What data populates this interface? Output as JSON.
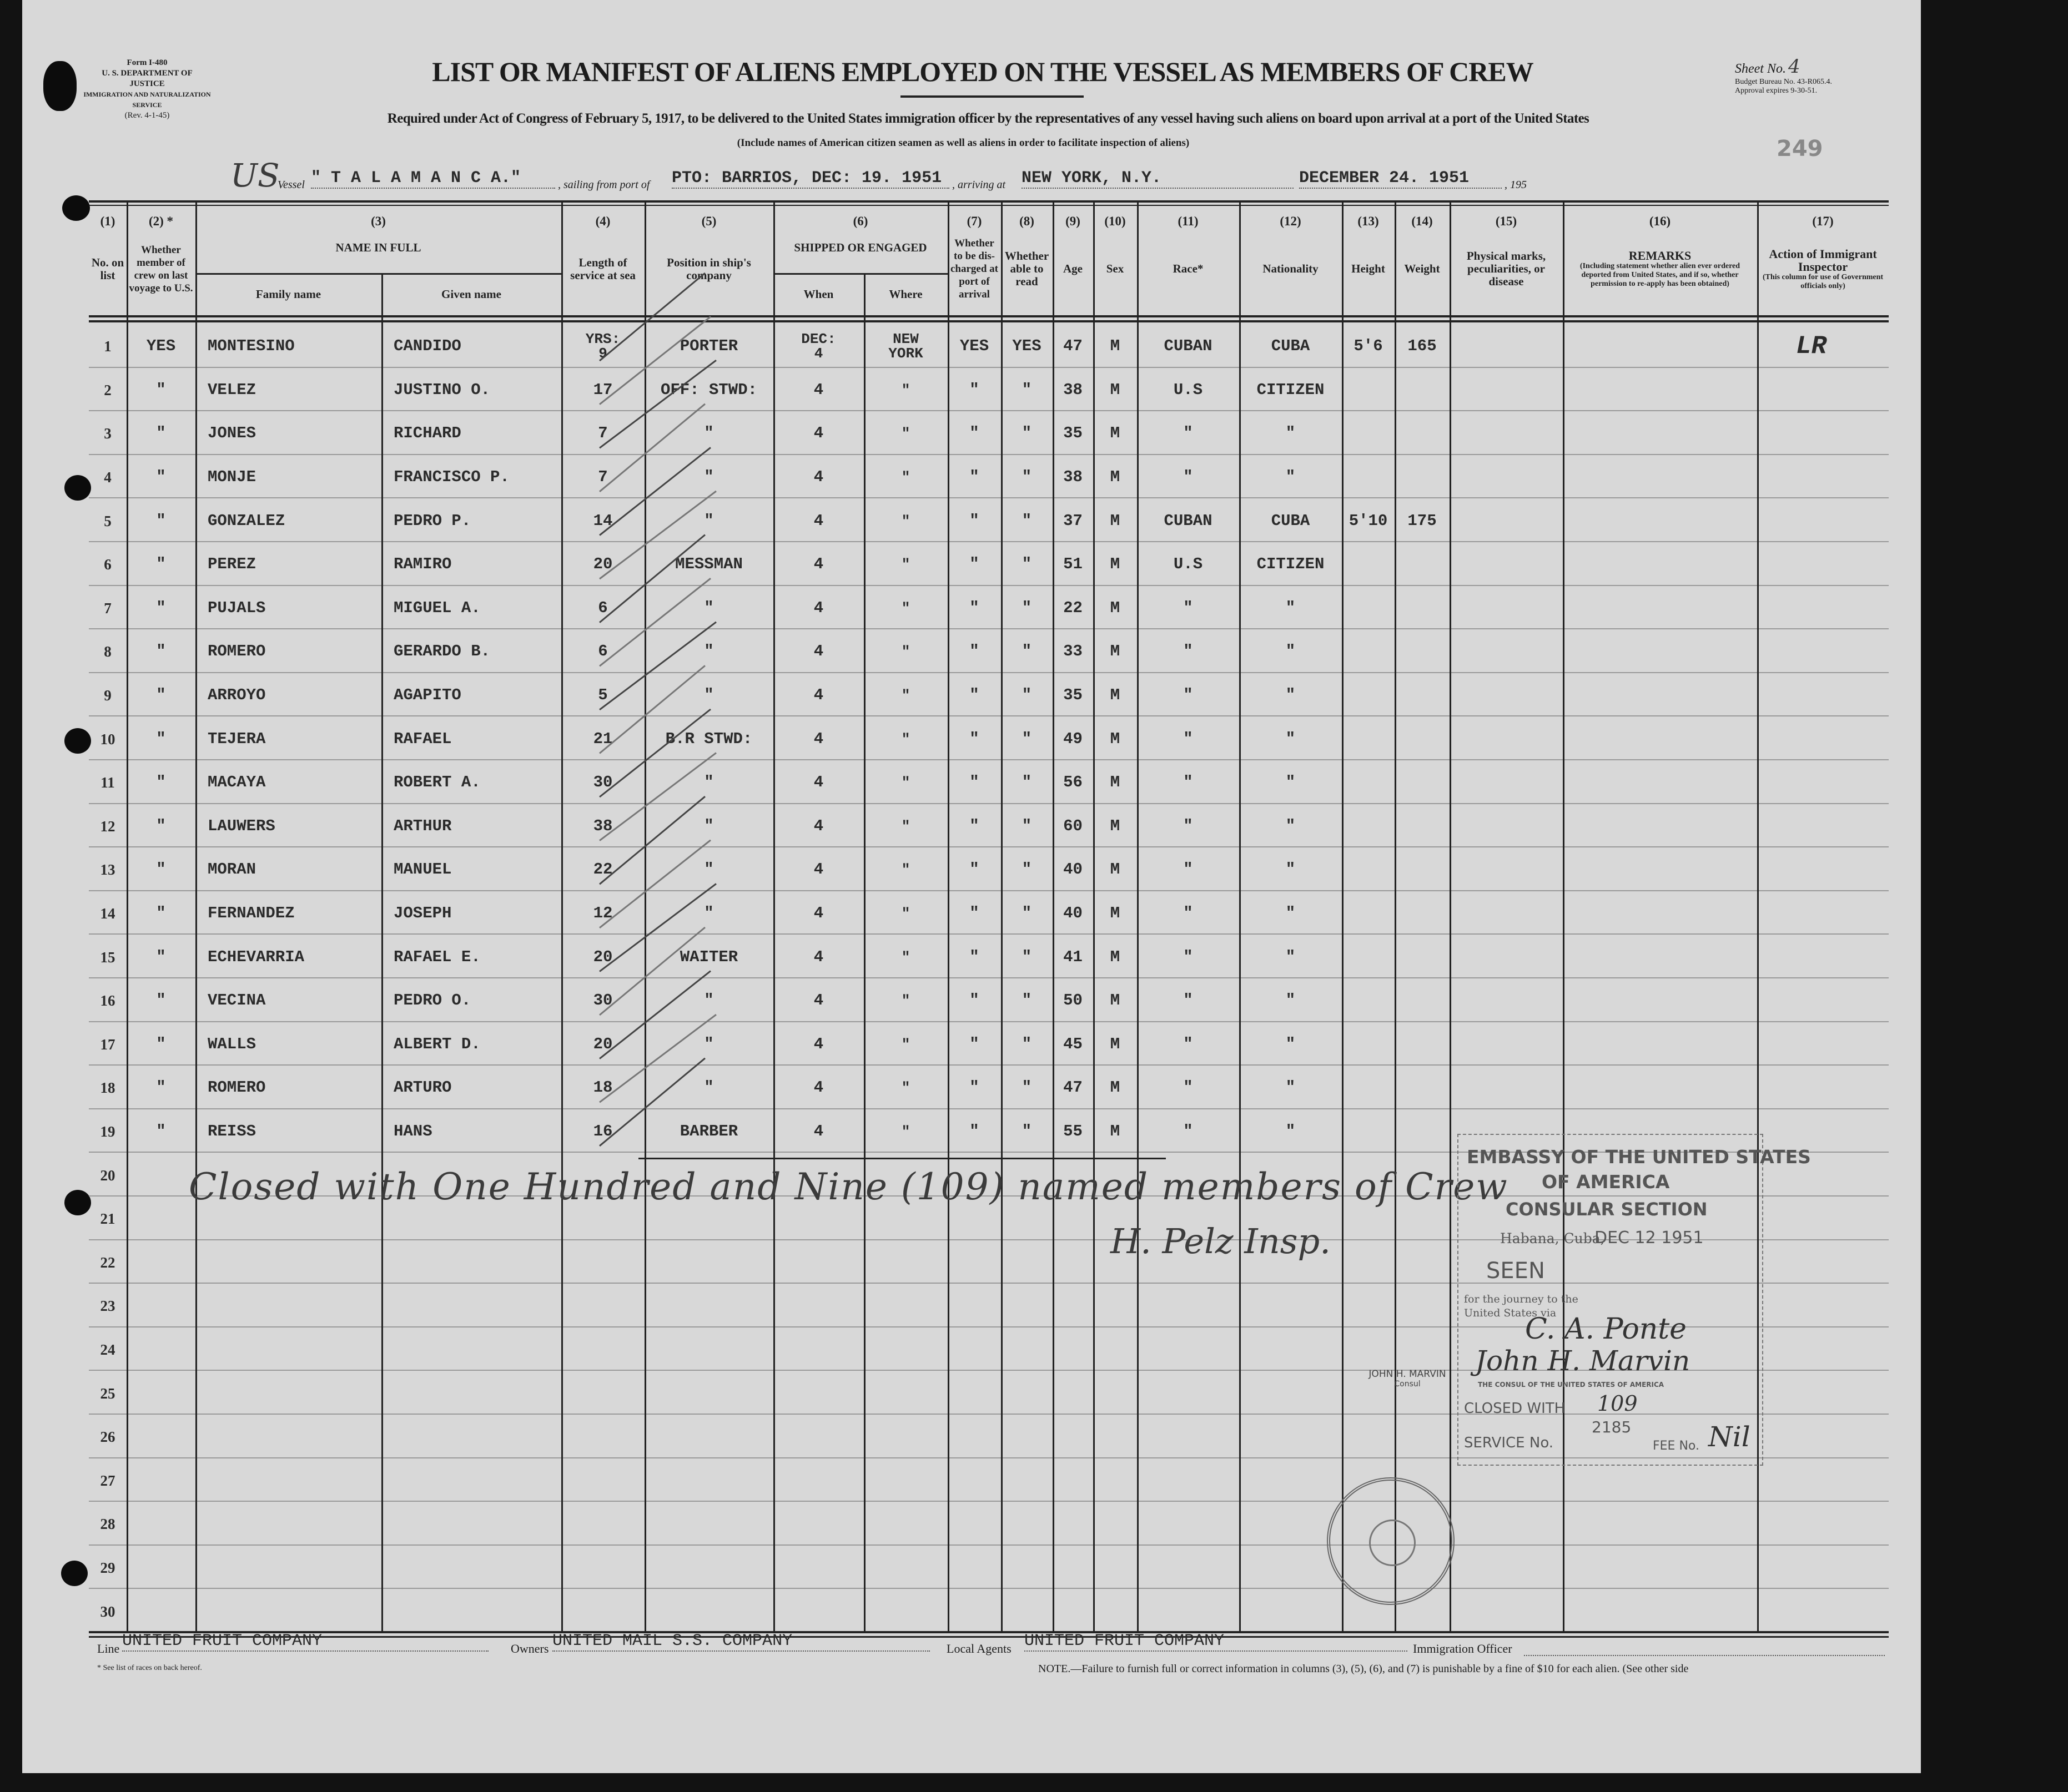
{
  "form_block": {
    "form_no": "Form I-480",
    "department": "U. S. DEPARTMENT OF JUSTICE",
    "service": "IMMIGRATION AND NATURALIZATION SERVICE",
    "revision": "(Rev. 4-1-45)"
  },
  "title": "LIST OR MANIFEST OF ALIENS EMPLOYED ON THE VESSEL AS MEMBERS OF CREW",
  "sheet": {
    "label": "Sheet No.",
    "number": "4",
    "budget": "Budget Bureau No. 43-R065.4.",
    "approval": "Approval expires 9-30-51."
  },
  "stamp_number": "249",
  "subtitle": "Required under Act of Congress of February 5, 1917, to be delivered to the United States immigration officer by the representatives of any vessel having such aliens on board upon arrival at a port of the United States",
  "include_note": "(Include names of American citizen seamen as well as aliens in order to facilitate inspection of aliens)",
  "voyage": {
    "handwritten_prefix": "US",
    "vessel_label": "Vessel",
    "vessel": "\" T A L A M A N C A.\"",
    "sailing_label": ", sailing from port of",
    "sailing": "PTO: BARRIOS, DEC: 19. 1951",
    "arriving_label": ", arriving at",
    "arriving": "NEW YORK, N.Y.",
    "date": "DECEMBER 24. 1951",
    "year_suffix": ", 195"
  },
  "columns": [
    {
      "num": "(1)",
      "label": "No. on list"
    },
    {
      "num": "(2) *",
      "label": "Whether member of crew on last voyage to U.S."
    },
    {
      "num": "(3)",
      "label": "NAME IN FULL",
      "sub": [
        "Family name",
        "Given name"
      ]
    },
    {
      "num": "(4)",
      "label": "Length of service at sea"
    },
    {
      "num": "(5)",
      "label": "Position in ship's company"
    },
    {
      "num": "(6)",
      "label": "SHIPPED OR ENGAGED",
      "sub": [
        "When",
        "Where"
      ]
    },
    {
      "num": "(7)",
      "label": "Whether to be dis-charged at port of arrival"
    },
    {
      "num": "(8)",
      "label": "Whether able to read"
    },
    {
      "num": "(9)",
      "label": "Age"
    },
    {
      "num": "(10)",
      "label": "Sex"
    },
    {
      "num": "(11)",
      "label": "Race*"
    },
    {
      "num": "(12)",
      "label": "Nationality"
    },
    {
      "num": "(13)",
      "label": "Height"
    },
    {
      "num": "(14)",
      "label": "Weight"
    },
    {
      "num": "(15)",
      "label": "Physical marks, peculiarities, or disease"
    },
    {
      "num": "(16)",
      "label": "REMARKS",
      "note": "(Including statement whether alien ever ordered deported from United States, and if so, whether permission to re-apply has been obtained)"
    },
    {
      "num": "(17)",
      "label": "Action of Immigrant Inspector",
      "note": "(This column for use of Government officials only)"
    }
  ],
  "rows": [
    {
      "no": "1",
      "last_voyage": "YES",
      "family": "MONTESINO",
      "given": "CANDIDO",
      "length": "YRS:\n9",
      "position": "PORTER",
      "when": "DEC:\n4",
      "where": "NEW\nYORK",
      "discharged": "YES",
      "read": "YES",
      "age": "47",
      "sex": "M",
      "race": "CUBAN",
      "nationality": "CUBA",
      "height": "5'6",
      "weight": "165",
      "action": "LR"
    },
    {
      "no": "2",
      "last_voyage": "\"",
      "family": "VELEZ",
      "given": "JUSTINO O.",
      "length": "17",
      "position": "OFF: STWD:",
      "when": "4",
      "where": "\"",
      "discharged": "\"",
      "read": "\"",
      "age": "38",
      "sex": "M",
      "race": "U.S",
      "nationality": "CITIZEN"
    },
    {
      "no": "3",
      "last_voyage": "\"",
      "family": "JONES",
      "given": "RICHARD",
      "length": "7",
      "position": "\"",
      "when": "4",
      "where": "\"",
      "discharged": "\"",
      "read": "\"",
      "age": "35",
      "sex": "M",
      "race": "\"",
      "nationality": "\""
    },
    {
      "no": "4",
      "last_voyage": "\"",
      "family": "MONJE",
      "given": "FRANCISCO P.",
      "length": "7",
      "position": "\"",
      "when": "4",
      "where": "\"",
      "discharged": "\"",
      "read": "\"",
      "age": "38",
      "sex": "M",
      "race": "\"",
      "nationality": "\""
    },
    {
      "no": "5",
      "last_voyage": "\"",
      "family": "GONZALEZ",
      "given": "PEDRO P.",
      "length": "14",
      "position": "\"",
      "when": "4",
      "where": "\"",
      "discharged": "\"",
      "read": "\"",
      "age": "37",
      "sex": "M",
      "race": "CUBAN",
      "nationality": "CUBA",
      "height": "5'10",
      "weight": "175"
    },
    {
      "no": "6",
      "last_voyage": "\"",
      "family": "PEREZ",
      "given": "RAMIRO",
      "length": "20",
      "position": "MESSMAN",
      "when": "4",
      "where": "\"",
      "discharged": "\"",
      "read": "\"",
      "age": "51",
      "sex": "M",
      "race": "U.S",
      "nationality": "CITIZEN"
    },
    {
      "no": "7",
      "last_voyage": "\"",
      "family": "PUJALS",
      "given": "MIGUEL A.",
      "length": "6",
      "position": "\"",
      "when": "4",
      "where": "\"",
      "discharged": "\"",
      "read": "\"",
      "age": "22",
      "sex": "M",
      "race": "\"",
      "nationality": "\""
    },
    {
      "no": "8",
      "last_voyage": "\"",
      "family": "ROMERO",
      "given": "GERARDO B.",
      "length": "6",
      "position": "\"",
      "when": "4",
      "where": "\"",
      "discharged": "\"",
      "read": "\"",
      "age": "33",
      "sex": "M",
      "race": "\"",
      "nationality": "\""
    },
    {
      "no": "9",
      "last_voyage": "\"",
      "family": "ARROYO",
      "given": "AGAPITO",
      "length": "5",
      "position": "\"",
      "when": "4",
      "where": "\"",
      "discharged": "\"",
      "read": "\"",
      "age": "35",
      "sex": "M",
      "race": "\"",
      "nationality": "\""
    },
    {
      "no": "10",
      "last_voyage": "\"",
      "family": "TEJERA",
      "given": "RAFAEL",
      "length": "21",
      "position": "B.R STWD:",
      "when": "4",
      "where": "\"",
      "discharged": "\"",
      "read": "\"",
      "age": "49",
      "sex": "M",
      "race": "\"",
      "nationality": "\""
    },
    {
      "no": "11",
      "last_voyage": "\"",
      "family": "MACAYA",
      "given": "ROBERT A.",
      "length": "30",
      "position": "\"",
      "when": "4",
      "where": "\"",
      "discharged": "\"",
      "read": "\"",
      "age": "56",
      "sex": "M",
      "race": "\"",
      "nationality": "\""
    },
    {
      "no": "12",
      "last_voyage": "\"",
      "family": "LAUWERS",
      "given": "ARTHUR",
      "length": "38",
      "position": "\"",
      "when": "4",
      "where": "\"",
      "discharged": "\"",
      "read": "\"",
      "age": "60",
      "sex": "M",
      "race": "\"",
      "nationality": "\""
    },
    {
      "no": "13",
      "last_voyage": "\"",
      "family": "MORAN",
      "given": "MANUEL",
      "length": "22",
      "position": "\"",
      "when": "4",
      "where": "\"",
      "discharged": "\"",
      "read": "\"",
      "age": "40",
      "sex": "M",
      "race": "\"",
      "nationality": "\""
    },
    {
      "no": "14",
      "last_voyage": "\"",
      "family": "FERNANDEZ",
      "given": "JOSEPH",
      "length": "12",
      "position": "\"",
      "when": "4",
      "where": "\"",
      "discharged": "\"",
      "read": "\"",
      "age": "40",
      "sex": "M",
      "race": "\"",
      "nationality": "\""
    },
    {
      "no": "15",
      "last_voyage": "\"",
      "family": "ECHEVARRIA",
      "given": "RAFAEL E.",
      "length": "20",
      "position": "WAITER",
      "when": "4",
      "where": "\"",
      "discharged": "\"",
      "read": "\"",
      "age": "41",
      "sex": "M",
      "race": "\"",
      "nationality": "\""
    },
    {
      "no": "16",
      "last_voyage": "\"",
      "family": "VECINA",
      "given": "PEDRO O.",
      "length": "30",
      "position": "\"",
      "when": "4",
      "where": "\"",
      "discharged": "\"",
      "read": "\"",
      "age": "50",
      "sex": "M",
      "race": "\"",
      "nationality": "\""
    },
    {
      "no": "17",
      "last_voyage": "\"",
      "family": "WALLS",
      "given": "ALBERT D.",
      "length": "20",
      "position": "\"",
      "when": "4",
      "where": "\"",
      "discharged": "\"",
      "read": "\"",
      "age": "45",
      "sex": "M",
      "race": "\"",
      "nationality": "\""
    },
    {
      "no": "18",
      "last_voyage": "\"",
      "family": "ROMERO",
      "given": "ARTURO",
      "length": "18",
      "position": "\"",
      "when": "4",
      "where": "\"",
      "discharged": "\"",
      "read": "\"",
      "age": "47",
      "sex": "M",
      "race": "\"",
      "nationality": "\""
    },
    {
      "no": "19",
      "last_voyage": "\"",
      "family": "REISS",
      "given": "HANS",
      "length": "16",
      "position": "BARBER",
      "when": "4",
      "where": "\"",
      "discharged": "\"",
      "read": "\"",
      "age": "55",
      "sex": "M",
      "race": "\"",
      "nationality": "\""
    },
    {
      "no": "20"
    },
    {
      "no": "21"
    },
    {
      "no": "22"
    },
    {
      "no": "23"
    },
    {
      "no": "24"
    },
    {
      "no": "25"
    },
    {
      "no": "26"
    },
    {
      "no": "27"
    },
    {
      "no": "28"
    },
    {
      "no": "29"
    },
    {
      "no": "30"
    }
  ],
  "closing_note": "Closed with One Hundred and Nine (109) named members of Crew",
  "inspector_signature": "H. Pelz Insp.",
  "consular_stamp": {
    "line1": "EMBASSY OF THE UNITED STATES",
    "line2": "OF AMERICA",
    "line3": "CONSULAR SECTION",
    "place": "Habana, Cuba,",
    "date": "DEC 12 1951",
    "seen": "SEEN",
    "journey1": "for the journey to the",
    "journey2": "United States via",
    "handwritten_via": "C. A. Ponte",
    "consul_signature": "John H. Marvin",
    "consul_name": "JOHN H. MARVIN",
    "consul_title": "Consul",
    "consul_line": "THE CONSUL OF THE UNITED STATES OF AMERICA",
    "closed_label": "CLOSED WITH",
    "closed_value": "109",
    "service_label": "SERVICE No.",
    "service_value": "2185",
    "fee_label": "FEE No.",
    "fee_value": "Nil"
  },
  "footer": {
    "line_label": "Line",
    "line": "UNITED FRUIT COMPANY",
    "owners_label": "Owners",
    "owners": "UNITED MAIL S.S. COMPANY",
    "agents_label": "Local Agents",
    "agents": "UNITED FRUIT COMPANY",
    "officer_label": "Immigration Officer",
    "footnote": "* See list of races on back hereof.",
    "note": "NOTE.—Failure to furnish full or correct information in columns (3), (5), (6), and (7) is punishable by a fine of $10 for each alien.   (See other side"
  }
}
